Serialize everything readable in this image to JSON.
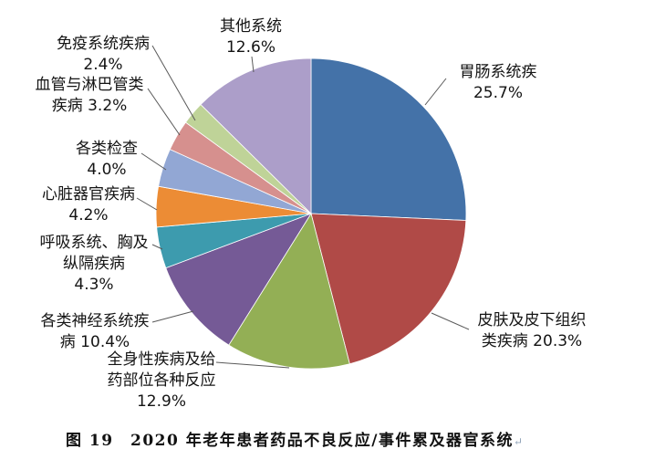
{
  "figure": {
    "caption": "图 19　2020 年老年患者药品不良反应/事件累及器官系统",
    "paragraph_mark": "↵"
  },
  "chart_data": {
    "type": "pie",
    "title": "2020 年老年患者药品不良反应/事件累及器官系统",
    "unit": "%",
    "start_angle_deg": 0,
    "direction": "clockwise",
    "legend_position": "none",
    "label_style": "outside-with-leader-lines",
    "slices": [
      {
        "name": "胃肠系统疾",
        "value": 25.7,
        "color": "#4472A8",
        "label_text": "胃肠系统疾\n25.7%"
      },
      {
        "name": "皮肤及皮下组织类疾病",
        "value": 20.3,
        "color": "#B04A47",
        "label_text": "皮肤及皮下组织\n类疾病 20.3%"
      },
      {
        "name": "全身性疾病及给药部位各种反应",
        "value": 12.9,
        "color": "#93AF55",
        "label_text": "全身性疾病及给\n药部位各种反应\n12.9%"
      },
      {
        "name": "各类神经系统疾病",
        "value": 10.4,
        "color": "#755A96",
        "label_text": "各类神经系统疾\n病 10.4%"
      },
      {
        "name": "呼吸系统、胸及纵隔疾病",
        "value": 4.3,
        "color": "#3D9BAE",
        "label_text": "呼吸系统、胸及\n纵隔疾病\n4.3%"
      },
      {
        "name": "心脏器官疾病",
        "value": 4.2,
        "color": "#EC8C35",
        "label_text": "心脏器官疾病\n4.2%"
      },
      {
        "name": "各类检查",
        "value": 4.0,
        "color": "#92A7D4",
        "label_text": "各类检查\n4.0%"
      },
      {
        "name": "血管与淋巴管类疾病",
        "value": 3.2,
        "color": "#D6908E",
        "label_text": "血管与淋巴管类\n疾病 3.2%"
      },
      {
        "name": "免疫系统疾病",
        "value": 2.4,
        "color": "#BFD398",
        "label_text": "免疫系统疾病\n2.4%"
      },
      {
        "name": "其他系统",
        "value": 12.6,
        "color": "#AC9EC9",
        "label_text": "其他系统\n12.6%"
      }
    ]
  }
}
